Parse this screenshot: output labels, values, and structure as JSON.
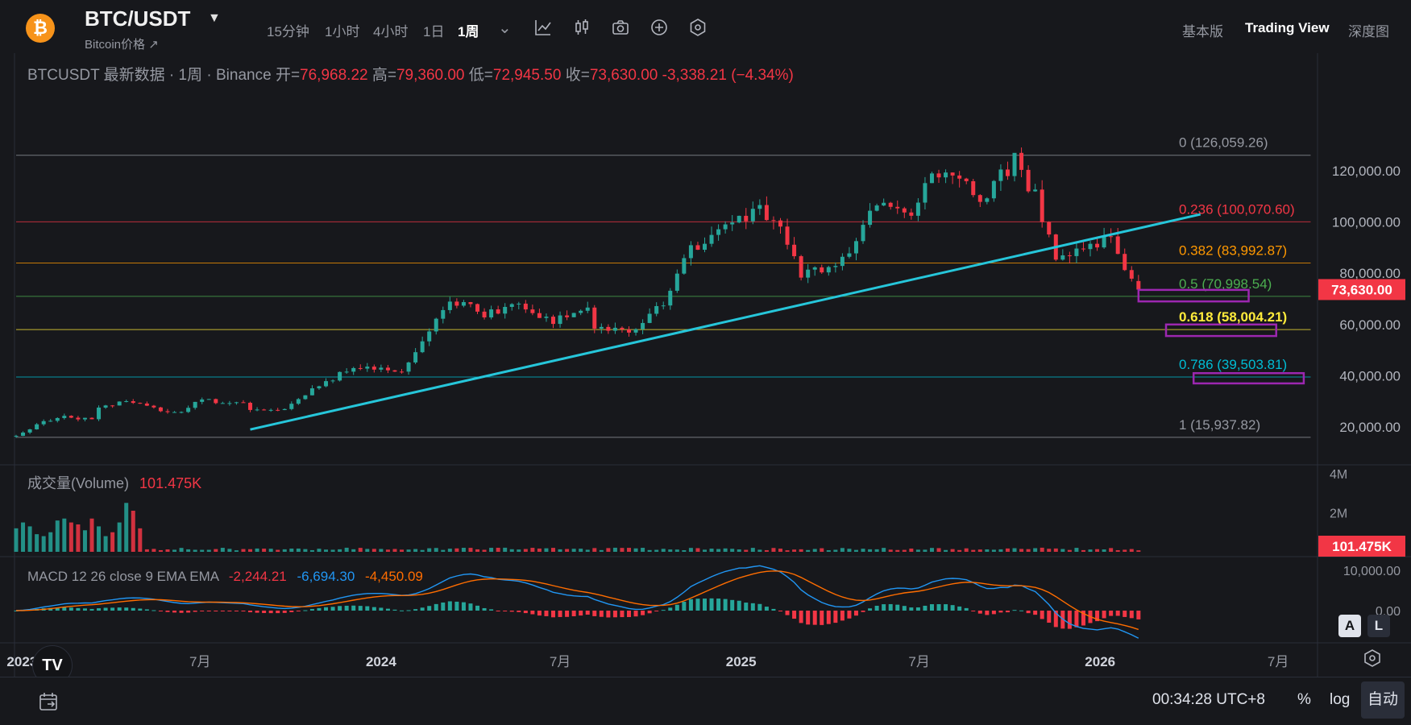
{
  "header": {
    "logo_symbol": "₿",
    "pair": "BTC/USDT",
    "caret": "▼",
    "subtitle": "Bitcoin价格 ↗",
    "timeframes": [
      "15分钟",
      "1小时",
      "4小时",
      "1日",
      "1周"
    ],
    "active_timeframe": "1周",
    "tf_dropdown": "⌄",
    "tools": [
      "indicator-icon",
      "candlestick-icon",
      "camera-icon",
      "plus-circle-icon",
      "settings-hex-icon"
    ],
    "views": [
      "基本版",
      "Trading View",
      "深度图"
    ],
    "active_view": "Trading View"
  },
  "legend": {
    "title": "BTCUSDT 最新数据 · 1周 · Binance",
    "open_label": "开=",
    "open": "76,968.22",
    "high_label": "高=",
    "high": "79,360.00",
    "low_label": "低=",
    "low": "72,945.50",
    "close_label": "收=",
    "close": "73,630.00",
    "change": "-3,338.21 (−4.34%)"
  },
  "volume_legend": {
    "label": "成交量(Volume)",
    "value": "101.475K"
  },
  "macd_legend": {
    "label": "MACD 12 26 close 9 EMA EMA",
    "hist": "-2,244.21",
    "macd": "-6,694.30",
    "signal": "-4,450.09"
  },
  "price_badge": "73,630.00",
  "volume_badge": "101.475K",
  "chart_data": {
    "type": "candlestick",
    "title": "BTCUSDT 最新数据 · 1周 · Binance",
    "interval": "1周",
    "x_range": [
      "2022-12-26",
      "2026-08-10"
    ],
    "ylim": [
      0,
      140000
    ],
    "y_ticks": [
      20000,
      40000,
      60000,
      80000,
      100000,
      120000
    ],
    "y_tick_labels": [
      "20,000.00",
      "40,000.00",
      "60,000.00",
      "80,000.00",
      "100,000.00",
      "120,000.00"
    ],
    "x_ticks": [
      {
        "date": "2023-01-01",
        "label": "2023"
      },
      {
        "date": "2023-07-01",
        "label": "7月"
      },
      {
        "date": "2024-01-01",
        "label": "2024"
      },
      {
        "date": "2024-07-01",
        "label": "7月"
      },
      {
        "date": "2025-01-01",
        "label": "2025"
      },
      {
        "date": "2025-07-01",
        "label": "7月"
      },
      {
        "date": "2026-01-01",
        "label": "2026"
      },
      {
        "date": "2026-07-01",
        "label": "7月"
      }
    ],
    "anchors": [
      {
        "date": "2022-12-26",
        "close": 16600
      },
      {
        "date": "2023-01-16",
        "close": 21000
      },
      {
        "date": "2023-02-13",
        "close": 24500
      },
      {
        "date": "2023-03-13",
        "close": 22500
      },
      {
        "date": "2023-03-20",
        "close": 27500
      },
      {
        "date": "2023-04-17",
        "close": 30000
      },
      {
        "date": "2023-05-15",
        "close": 27000
      },
      {
        "date": "2023-06-12",
        "close": 25500
      },
      {
        "date": "2023-06-26",
        "close": 30500
      },
      {
        "date": "2023-08-14",
        "close": 29300
      },
      {
        "date": "2023-08-21",
        "close": 26100
      },
      {
        "date": "2023-09-25",
        "close": 26800
      },
      {
        "date": "2023-10-23",
        "close": 34500
      },
      {
        "date": "2023-12-04",
        "close": 43500
      },
      {
        "date": "2024-01-22",
        "close": 41500
      },
      {
        "date": "2024-02-26",
        "close": 62000
      },
      {
        "date": "2024-03-11",
        "close": 70000
      },
      {
        "date": "2024-04-15",
        "close": 64000
      },
      {
        "date": "2024-05-20",
        "close": 68500
      },
      {
        "date": "2024-06-24",
        "close": 61000
      },
      {
        "date": "2024-07-29",
        "close": 66000
      },
      {
        "date": "2024-08-05",
        "close": 58500
      },
      {
        "date": "2024-09-09",
        "close": 56500
      },
      {
        "date": "2024-10-14",
        "close": 68000
      },
      {
        "date": "2024-11-11",
        "close": 90000
      },
      {
        "date": "2024-12-16",
        "close": 97000
      },
      {
        "date": "2025-01-20",
        "close": 104500
      },
      {
        "date": "2025-02-10",
        "close": 96000
      },
      {
        "date": "2025-03-03",
        "close": 80000
      },
      {
        "date": "2025-04-07",
        "close": 81000
      },
      {
        "date": "2025-05-19",
        "close": 107000
      },
      {
        "date": "2025-06-23",
        "close": 105000
      },
      {
        "date": "2025-07-14",
        "close": 118000
      },
      {
        "date": "2025-08-11",
        "close": 119000
      },
      {
        "date": "2025-09-01",
        "close": 108500
      },
      {
        "date": "2025-10-06",
        "close": 124000
      },
      {
        "date": "2025-10-27",
        "close": 110000
      },
      {
        "date": "2025-11-17",
        "close": 86000
      },
      {
        "date": "2025-12-15",
        "close": 88000
      },
      {
        "date": "2026-01-12",
        "close": 95500
      },
      {
        "date": "2026-02-02",
        "close": 76968
      },
      {
        "date": "2026-02-09",
        "close": 73630
      }
    ],
    "last_bar": {
      "open": 76968.22,
      "high": 79360.0,
      "low": 72945.5,
      "close": 73630.0
    },
    "fibonacci": [
      {
        "level": "0",
        "value": 126059.26,
        "label": "0 (126,059.26)",
        "color": "#9598a1"
      },
      {
        "level": "0.236",
        "value": 100070.6,
        "label": "0.236 (100,070.60)",
        "color": "#f23645"
      },
      {
        "level": "0.382",
        "value": 83992.87,
        "label": "0.382 (83,992.87)",
        "color": "#ff9800"
      },
      {
        "level": "0.5",
        "value": 70998.54,
        "label": "0.5 (70,998.54)",
        "color": "#4caf50"
      },
      {
        "level": "0.618",
        "value": 58004.21,
        "label": "0.618 (58,004.21)",
        "color": "#ffeb3b"
      },
      {
        "level": "0.786",
        "value": 39503.81,
        "label": "0.786 (39,503.81)",
        "color": "#00bcd4"
      },
      {
        "level": "1",
        "value": 15937.82,
        "label": "1 (15,937.82)",
        "color": "#9598a1"
      }
    ],
    "trendline": {
      "start": {
        "date": "2023-08-21",
        "price": 19000
      },
      "end": {
        "date": "2026-04-13",
        "price": 103000
      },
      "color": "#26c6da"
    },
    "zones": [
      {
        "start": "2026-02-09",
        "end": "2026-06-01",
        "top": 73500,
        "bottom": 69000,
        "color": "#9c27b0"
      },
      {
        "start": "2026-03-09",
        "end": "2026-06-29",
        "top": 60000,
        "bottom": 55500,
        "color": "#9c27b0"
      },
      {
        "start": "2026-04-06",
        "end": "2026-07-27",
        "top": 41000,
        "bottom": 37000,
        "color": "#9c27b0"
      }
    ],
    "volume": {
      "label": "成交量(Volume)",
      "last": "101.475K",
      "y_tick_labels": [
        "4M",
        "2M"
      ],
      "y_ticks": [
        4000000,
        2000000
      ],
      "early_weeks": [
        1200000,
        1500000,
        1300000,
        900000,
        800000,
        1000000,
        1600000,
        1700000,
        1500000,
        1400000,
        1100000,
        1700000,
        1300000,
        800000,
        1000000,
        1500000,
        2500000,
        2100000,
        1200000
      ],
      "typical": 150000
    },
    "macd": {
      "params": "MACD 12 26 close 9 EMA EMA",
      "histogram_last": -2244.21,
      "macd_last": -6694.3,
      "signal_last": -4450.09,
      "y_tick_labels": [
        "10,000.00",
        "0.00"
      ],
      "y_ticks": [
        10000,
        0
      ],
      "colors": {
        "macd": "#2196f3",
        "signal": "#ff6d00",
        "hist_up": "#26a69a",
        "hist_down": "#f23645"
      }
    },
    "colors": {
      "up": "#26a69a",
      "down": "#f23645",
      "background": "#17181c",
      "grid": "#2a2e39"
    }
  },
  "bottom": {
    "time": "00:34:28 UTC+8",
    "percent": "%",
    "log": "log",
    "auto": "自动",
    "btn_a": "A",
    "btn_l": "L",
    "collapse": "‹"
  }
}
